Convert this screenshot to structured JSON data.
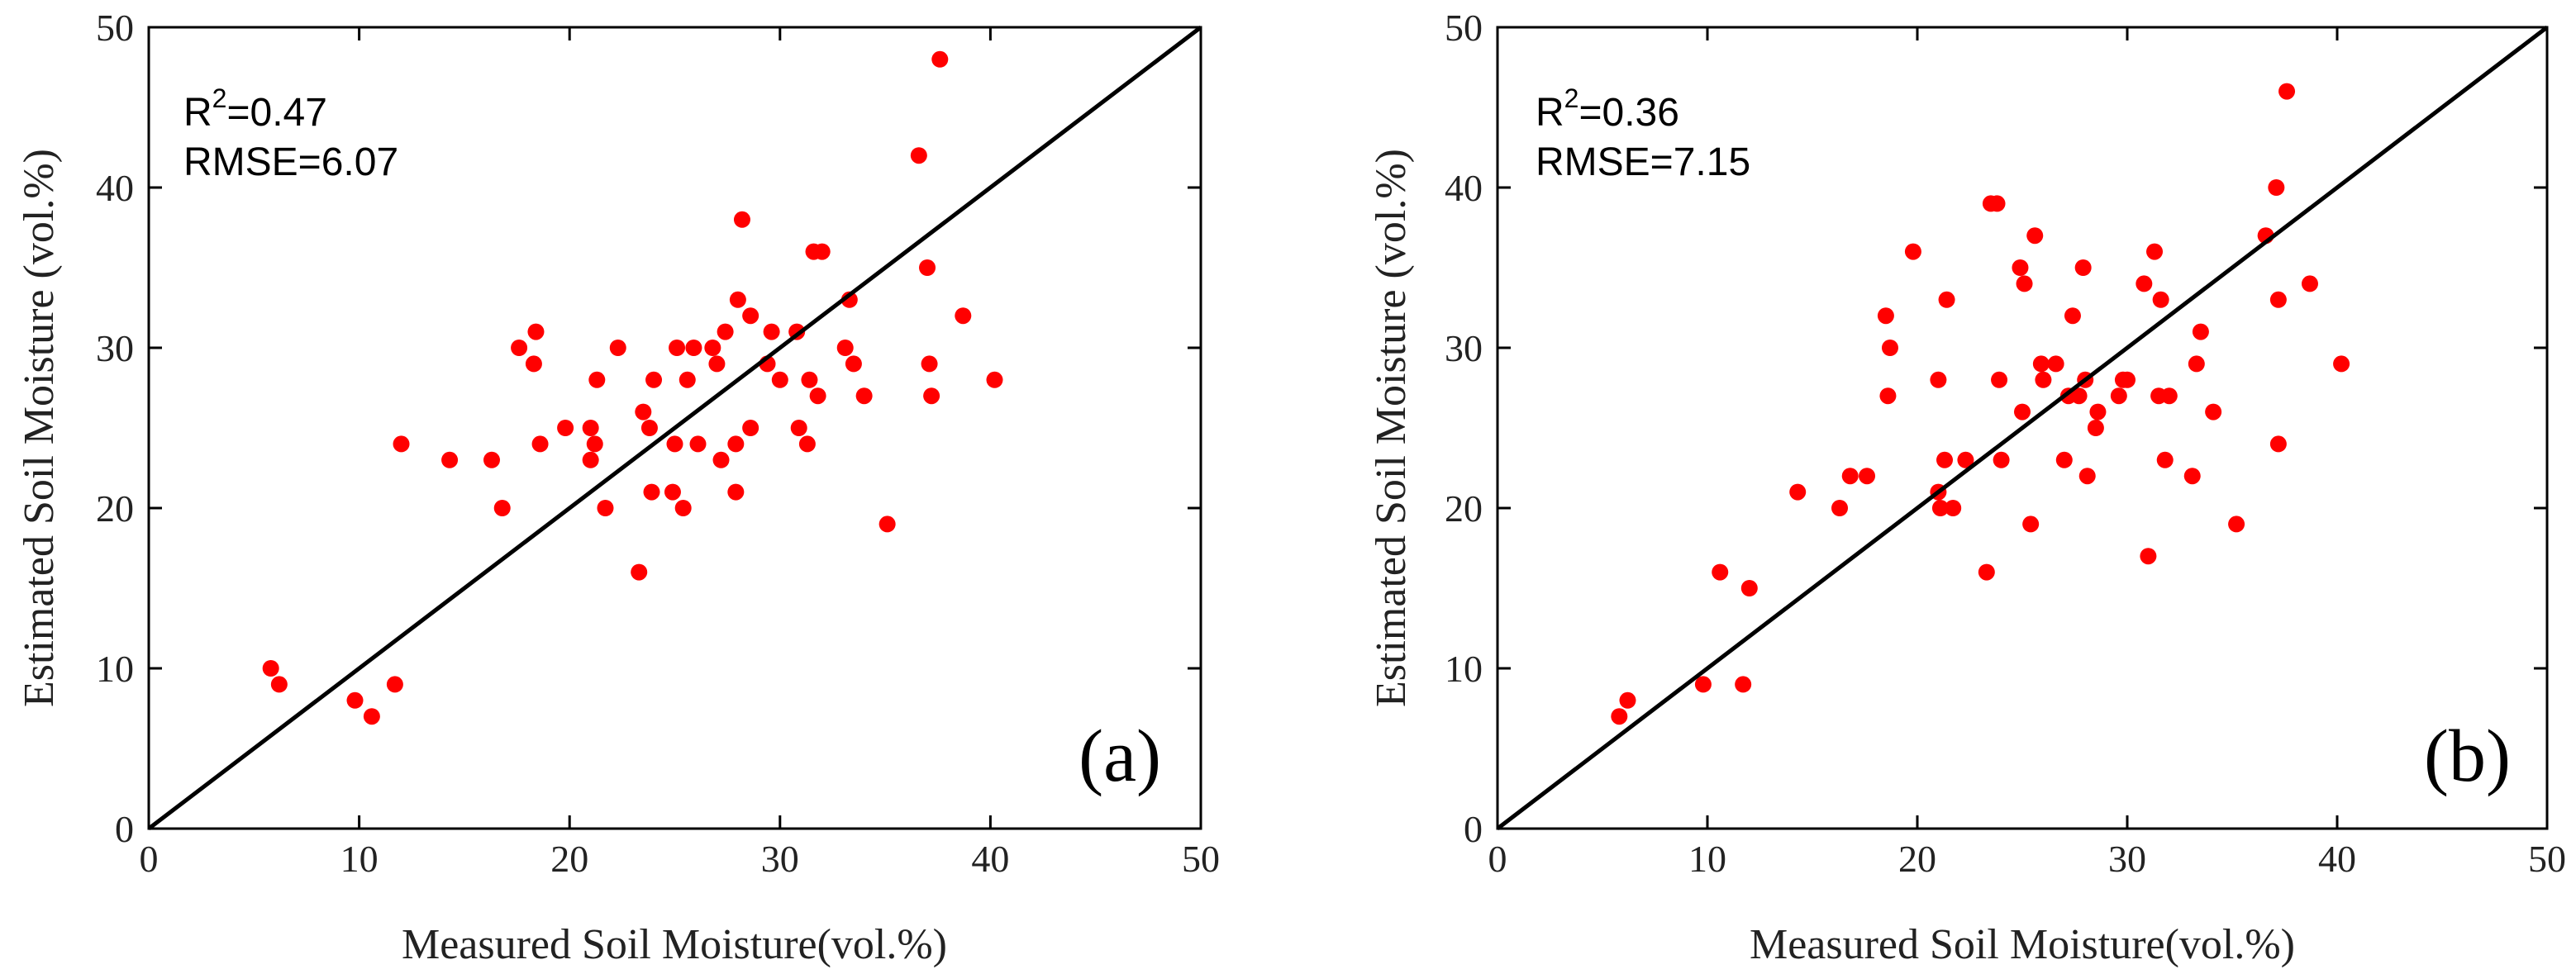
{
  "chart_data": [
    {
      "type": "scatter",
      "panel_label": "(a)",
      "xlabel": "Measured Soil Moisture(vol.%)",
      "ylabel": "Estimated Soil Moisture (vol.%)",
      "xlim": [
        0,
        50
      ],
      "ylim": [
        0,
        50
      ],
      "xticks": [
        "0",
        "10",
        "20",
        "30",
        "40",
        "50"
      ],
      "yticks": [
        "0",
        "10",
        "20",
        "30",
        "40",
        "50"
      ],
      "r2_prefix": "R",
      "r2_exp": "2",
      "r2_value": "=0.47",
      "rmse": "RMSE=6.07",
      "reference_line": "1:1",
      "point_color": "#ff0000",
      "points": [
        [
          5.8,
          10
        ],
        [
          6.2,
          9
        ],
        [
          9.8,
          8
        ],
        [
          10.6,
          7
        ],
        [
          11.7,
          9
        ],
        [
          12,
          24
        ],
        [
          14.3,
          23
        ],
        [
          16.3,
          23
        ],
        [
          16.8,
          20
        ],
        [
          17.6,
          30
        ],
        [
          18.3,
          29
        ],
        [
          18.4,
          31
        ],
        [
          18.6,
          24
        ],
        [
          19.8,
          25
        ],
        [
          21,
          25
        ],
        [
          21,
          23
        ],
        [
          21.2,
          24
        ],
        [
          21.3,
          28
        ],
        [
          21.7,
          20
        ],
        [
          22.3,
          30
        ],
        [
          23.3,
          16
        ],
        [
          23.5,
          26
        ],
        [
          23.8,
          25
        ],
        [
          23.9,
          21
        ],
        [
          24,
          28
        ],
        [
          24.9,
          21
        ],
        [
          25,
          24
        ],
        [
          25.1,
          30
        ],
        [
          25.4,
          20
        ],
        [
          25.6,
          28
        ],
        [
          25.9,
          30
        ],
        [
          26.1,
          24
        ],
        [
          26.8,
          30
        ],
        [
          27,
          29
        ],
        [
          27.2,
          23
        ],
        [
          27.4,
          31
        ],
        [
          27.9,
          21
        ],
        [
          27.9,
          24
        ],
        [
          28,
          33
        ],
        [
          28.2,
          38
        ],
        [
          28.6,
          32
        ],
        [
          28.6,
          25
        ],
        [
          29.4,
          29
        ],
        [
          29.6,
          31
        ],
        [
          30,
          28
        ],
        [
          30.8,
          31
        ],
        [
          30.9,
          25
        ],
        [
          31.3,
          24
        ],
        [
          31.4,
          28
        ],
        [
          31.6,
          36
        ],
        [
          31.8,
          27
        ],
        [
          32,
          36
        ],
        [
          33.1,
          30
        ],
        [
          33.3,
          33
        ],
        [
          33.5,
          29
        ],
        [
          34,
          27
        ],
        [
          35.1,
          19
        ],
        [
          36.6,
          42
        ],
        [
          37,
          35
        ],
        [
          37.1,
          29
        ],
        [
          37.2,
          27
        ],
        [
          37.6,
          48
        ],
        [
          38.7,
          32
        ],
        [
          40.2,
          28
        ]
      ]
    },
    {
      "type": "scatter",
      "panel_label": "(b)",
      "xlabel": "Measured Soil Moisture(vol.%)",
      "ylabel": "Estimated Soil Moisture (vol.%)",
      "xlim": [
        0,
        50
      ],
      "ylim": [
        0,
        50
      ],
      "xticks": [
        "0",
        "10",
        "20",
        "30",
        "40",
        "50"
      ],
      "yticks": [
        "0",
        "10",
        "20",
        "30",
        "40",
        "50"
      ],
      "r2_prefix": "R",
      "r2_exp": "2",
      "r2_value": "=0.36",
      "rmse": "RMSE=7.15",
      "reference_line": "1:1",
      "point_color": "#ff0000",
      "points": [
        [
          5.8,
          7
        ],
        [
          6.2,
          8
        ],
        [
          9.8,
          9
        ],
        [
          10.6,
          16
        ],
        [
          11.7,
          9
        ],
        [
          12,
          15
        ],
        [
          14.3,
          21
        ],
        [
          16.3,
          20
        ],
        [
          16.8,
          22
        ],
        [
          17.6,
          22
        ],
        [
          18.5,
          32
        ],
        [
          18.6,
          27
        ],
        [
          18.7,
          30
        ],
        [
          19.8,
          36
        ],
        [
          21,
          28
        ],
        [
          21,
          21
        ],
        [
          21.1,
          20
        ],
        [
          21.3,
          23
        ],
        [
          21.4,
          33
        ],
        [
          21.7,
          20
        ],
        [
          22.3,
          23
        ],
        [
          23.3,
          16
        ],
        [
          23.5,
          39
        ],
        [
          23.8,
          39
        ],
        [
          23.9,
          28
        ],
        [
          24,
          23
        ],
        [
          24.9,
          35
        ],
        [
          25,
          26
        ],
        [
          25.1,
          34
        ],
        [
          25.4,
          19
        ],
        [
          25.6,
          37
        ],
        [
          25.9,
          29
        ],
        [
          26,
          28
        ],
        [
          26.6,
          29
        ],
        [
          27,
          23
        ],
        [
          27.2,
          27
        ],
        [
          27.4,
          32
        ],
        [
          27.7,
          27
        ],
        [
          27.9,
          35
        ],
        [
          28,
          28
        ],
        [
          28.1,
          22
        ],
        [
          28.5,
          25
        ],
        [
          28.6,
          26
        ],
        [
          29.6,
          27
        ],
        [
          29.8,
          28
        ],
        [
          30,
          28
        ],
        [
          30.8,
          34
        ],
        [
          31,
          17
        ],
        [
          31.3,
          36
        ],
        [
          31.5,
          27
        ],
        [
          31.6,
          33
        ],
        [
          31.8,
          23
        ],
        [
          32,
          27
        ],
        [
          33.1,
          22
        ],
        [
          33.3,
          29
        ],
        [
          33.5,
          31
        ],
        [
          34.1,
          26
        ],
        [
          35.2,
          19
        ],
        [
          36.6,
          37
        ],
        [
          37.1,
          40
        ],
        [
          37.2,
          33
        ],
        [
          37.2,
          24
        ],
        [
          37.6,
          46
        ],
        [
          38.7,
          34
        ],
        [
          40.2,
          29
        ]
      ]
    }
  ]
}
